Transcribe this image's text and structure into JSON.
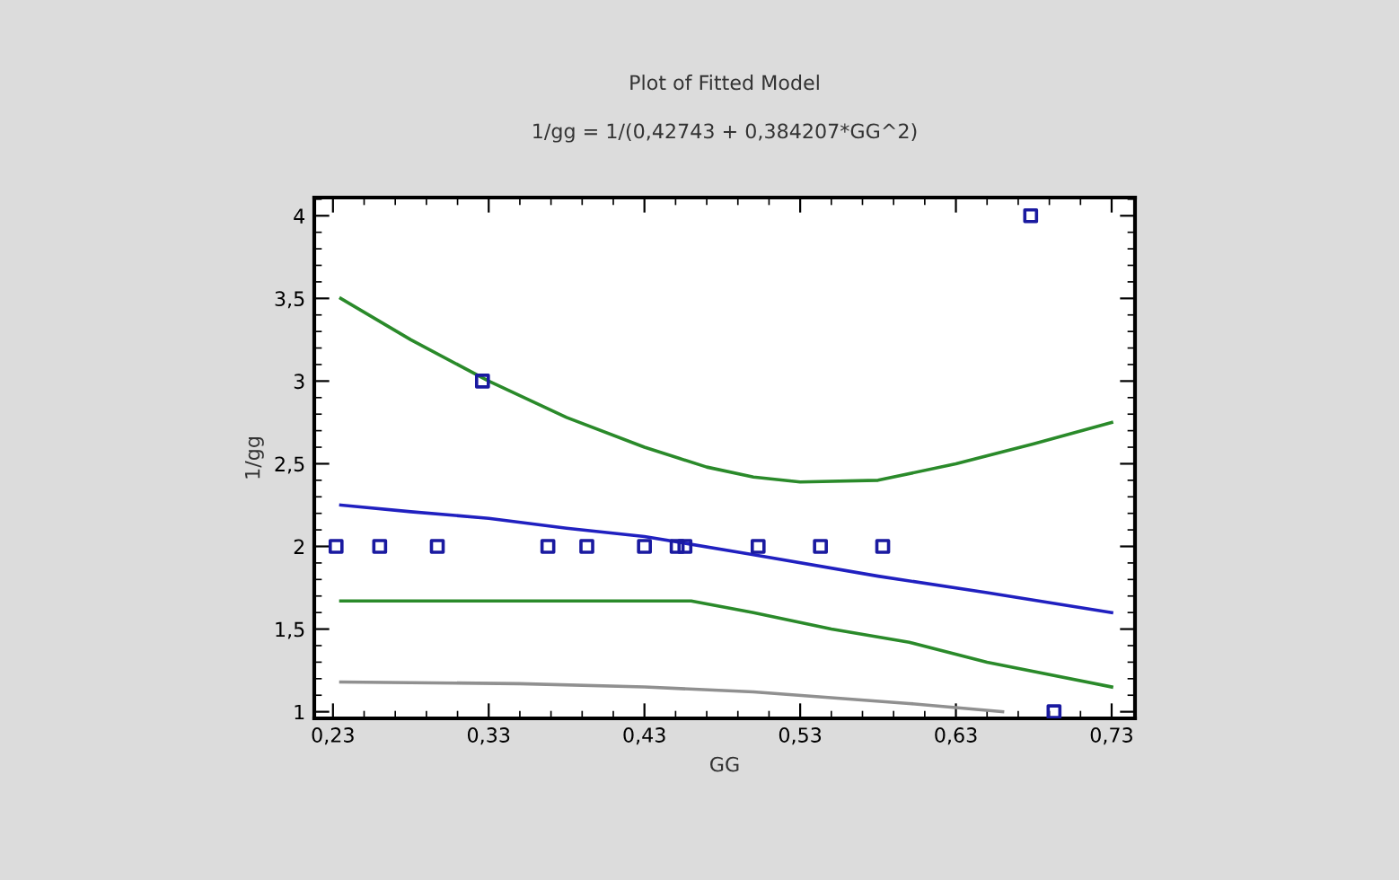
{
  "chart_data": {
    "type": "line",
    "title": "Plot of Fitted Model",
    "subtitle": "1/gg = 1/(0,42743 + 0,384207*GG^2)",
    "xlabel": "GG",
    "ylabel": "1/gg",
    "xlim": [
      0.218,
      0.745
    ],
    "ylim": [
      0.96,
      4.11
    ],
    "xticks": [
      {
        "value": 0.23,
        "label": "0,23"
      },
      {
        "value": 0.33,
        "label": "0,33"
      },
      {
        "value": 0.43,
        "label": "0,43"
      },
      {
        "value": 0.53,
        "label": "0,53"
      },
      {
        "value": 0.63,
        "label": "0,63"
      },
      {
        "value": 0.73,
        "label": "0,73"
      }
    ],
    "yticks": [
      1,
      {
        "value": 1.5,
        "label": "1,5"
      },
      2,
      {
        "value": 2.5,
        "label": "2,5"
      },
      3,
      {
        "value": 3.5,
        "label": "3,5"
      },
      4
    ],
    "grid": false,
    "series": [
      {
        "type": "scatter",
        "marker": "square",
        "color": "#1a1aa0",
        "x": [
          0.232,
          0.26,
          0.297,
          0.326,
          0.368,
          0.393,
          0.43,
          0.451,
          0.456,
          0.503,
          0.543,
          0.583,
          0.678,
          0.693
        ],
        "values": [
          2,
          2,
          2,
          3,
          2,
          2,
          2,
          2,
          2,
          2,
          2,
          2,
          4,
          1
        ]
      },
      {
        "color": "#2020c0",
        "x": [
          0.235,
          0.28,
          0.33,
          0.38,
          0.43,
          0.5,
          0.58,
          0.65,
          0.73
        ],
        "values": [
          2.25,
          2.21,
          2.17,
          2.11,
          2.06,
          1.95,
          1.82,
          1.72,
          1.6
        ]
      },
      {
        "color": "#2a8a2a",
        "x": [
          0.235,
          0.28,
          0.33,
          0.38,
          0.43,
          0.47,
          0.5,
          0.53,
          0.58,
          0.63,
          0.68,
          0.73
        ],
        "values": [
          3.5,
          3.25,
          3.0,
          2.78,
          2.6,
          2.48,
          2.42,
          2.39,
          2.4,
          2.5,
          2.62,
          2.75
        ]
      },
      {
        "color": "#2a8a2a",
        "x": [
          0.235,
          0.33,
          0.46,
          0.5,
          0.55,
          0.6,
          0.65,
          0.73
        ],
        "values": [
          1.67,
          1.67,
          1.67,
          1.6,
          1.5,
          1.42,
          1.3,
          1.15
        ]
      },
      {
        "color": "#909090",
        "x": [
          0.235,
          0.35,
          0.43,
          0.5,
          0.6,
          0.66
        ],
        "values": [
          1.18,
          1.17,
          1.15,
          1.12,
          1.05,
          1.0
        ]
      }
    ]
  }
}
